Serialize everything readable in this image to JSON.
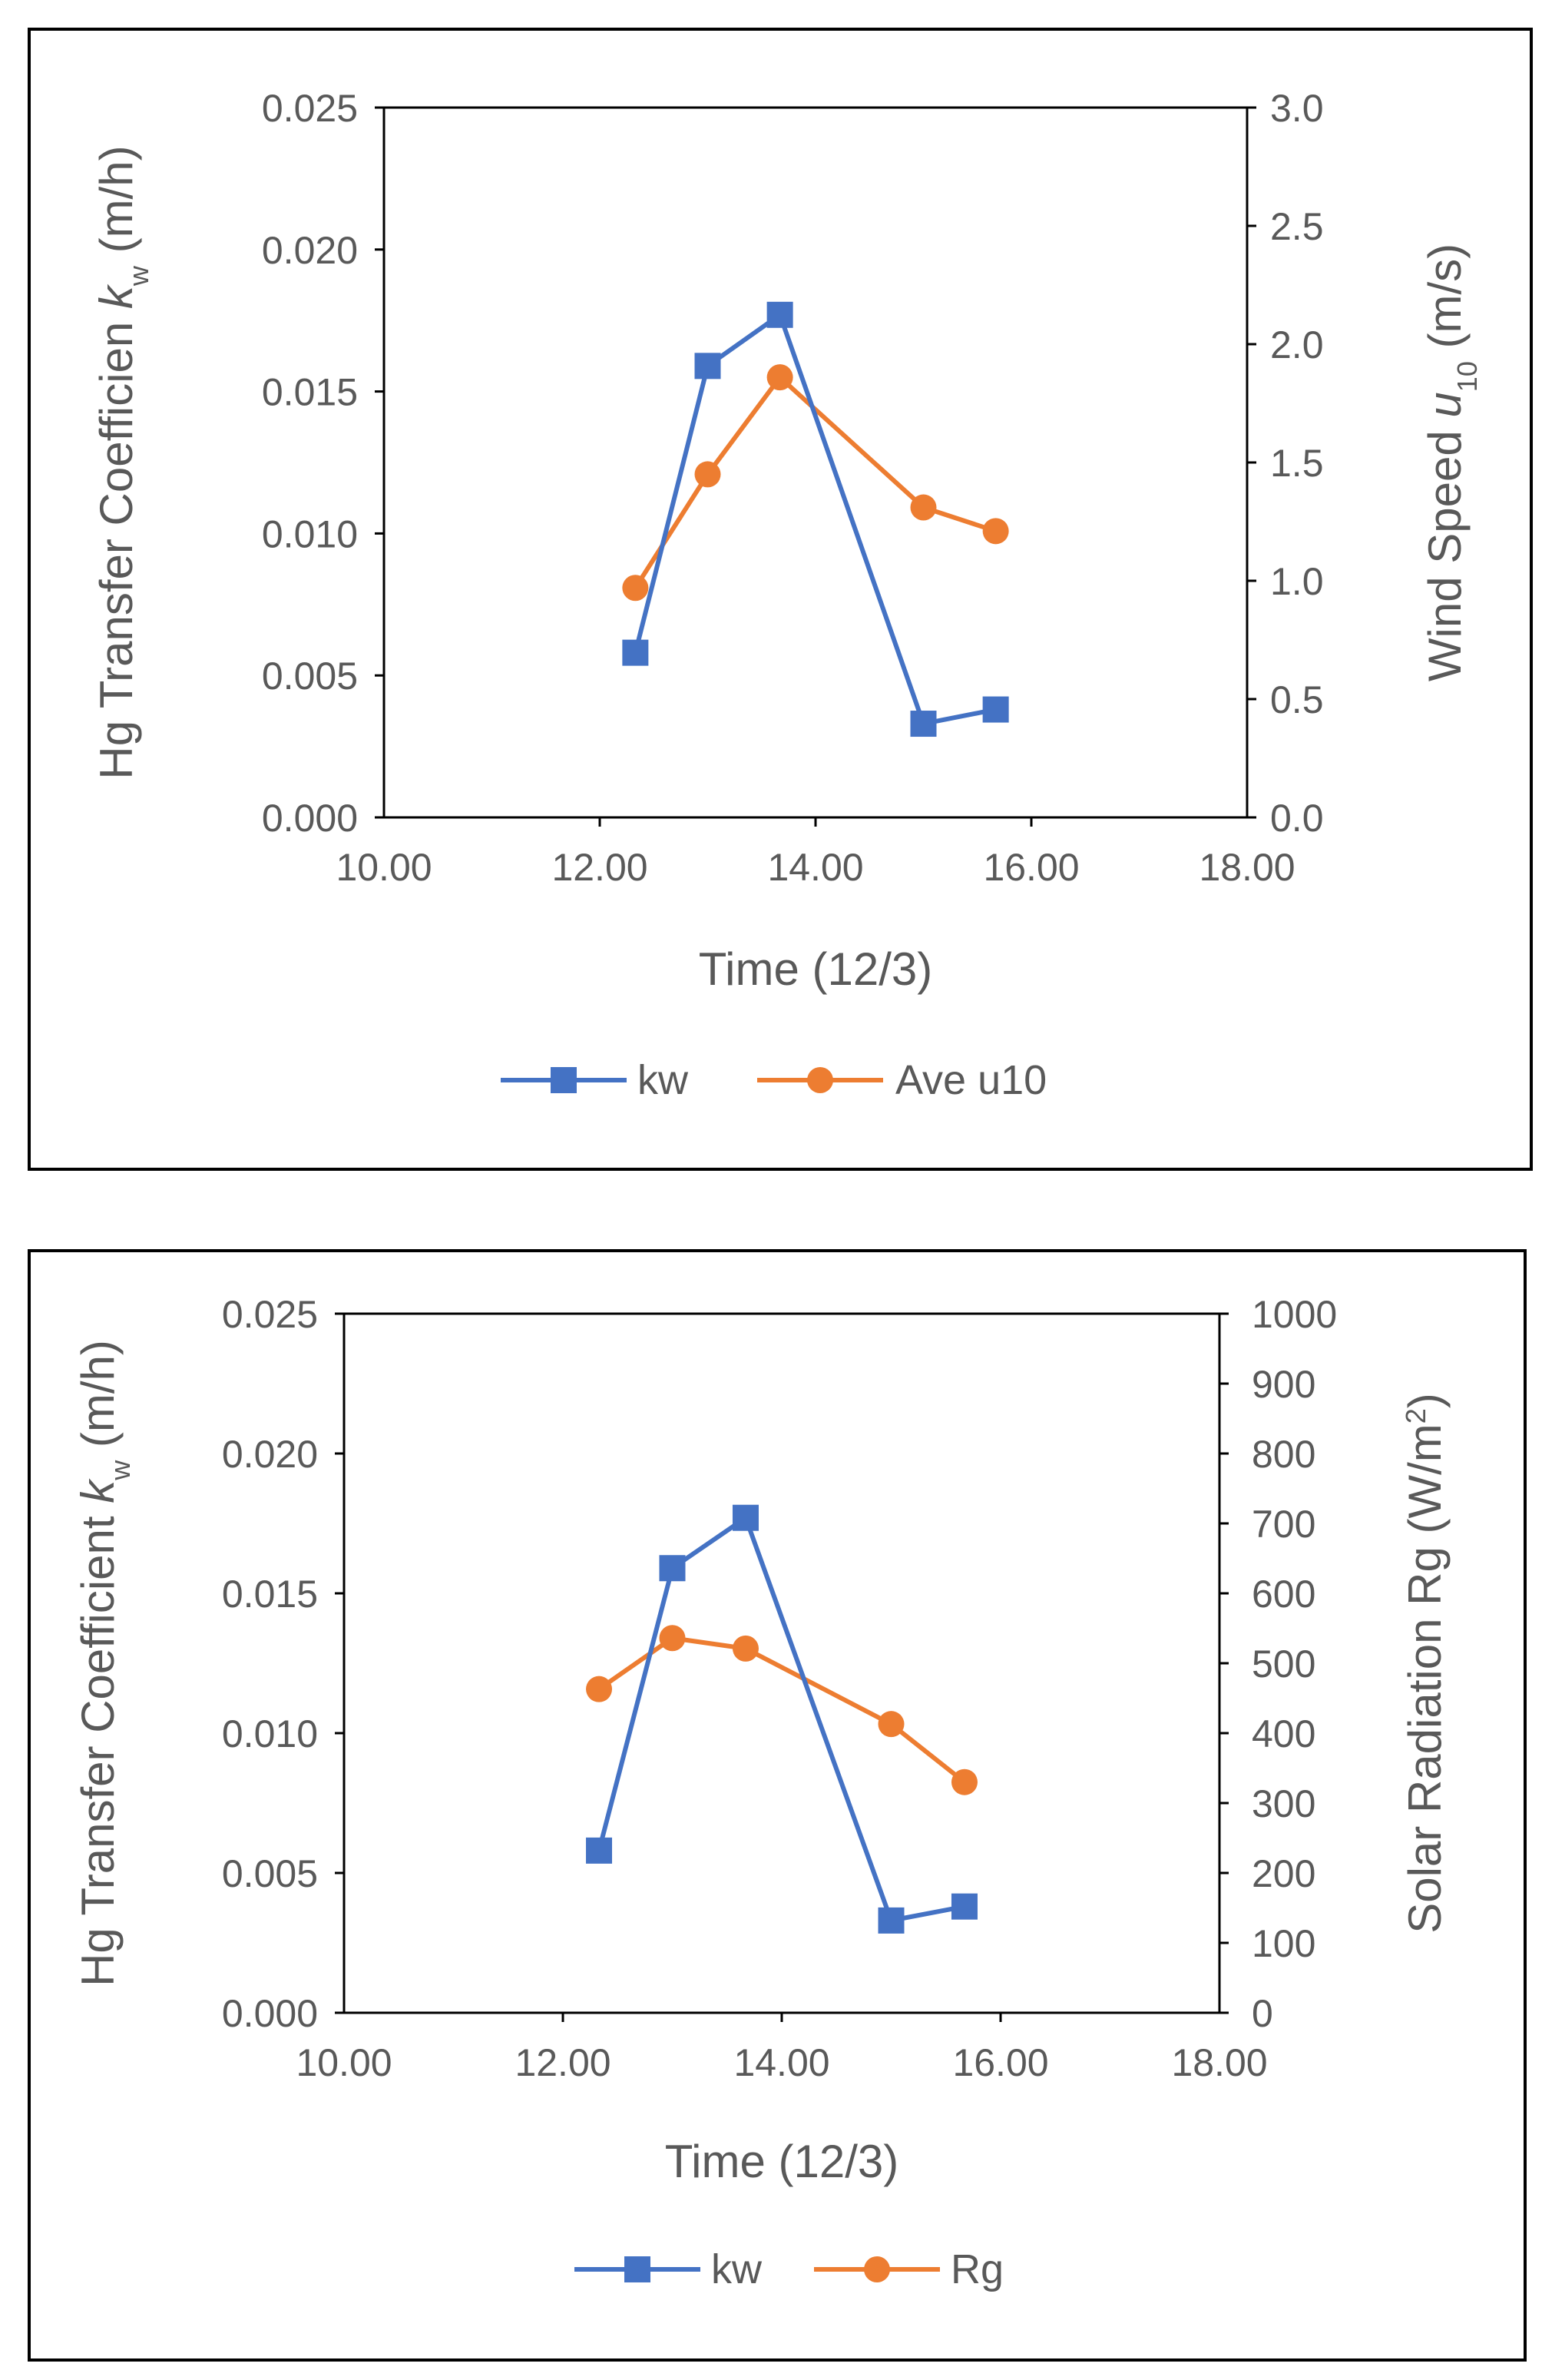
{
  "colors": {
    "kw": "#4472C4",
    "secondary": "#ED7D31",
    "axis_text": "#595959",
    "frame": "#000000"
  },
  "chart_data": [
    {
      "type": "line",
      "x": [
        12.33,
        13.0,
        13.67,
        15.0,
        15.67
      ],
      "series": [
        {
          "name": "kw",
          "axis": "left",
          "marker": "square",
          "values": [
            0.0058,
            0.0159,
            0.0177,
            0.0033,
            0.0038
          ]
        },
        {
          "name": "Ave u10",
          "axis": "right",
          "marker": "circle",
          "values": [
            0.97,
            1.45,
            1.86,
            1.31,
            1.21
          ]
        }
      ],
      "xlabel": "Time (12/3)",
      "xlim": [
        10.0,
        18.0
      ],
      "xticks": [
        "10.00",
        "12.00",
        "14.00",
        "16.00",
        "18.00"
      ],
      "ylim_left": [
        0.0,
        0.025
      ],
      "yticks_left": [
        "0.000",
        "0.005",
        "0.010",
        "0.015",
        "0.020",
        "0.025"
      ],
      "ylabel_left": {
        "main": "Hg Transfer Coefficien ",
        "var": "k",
        "sub": "w",
        "unit": " (m/h)"
      },
      "ylim_right": [
        0.0,
        3.0
      ],
      "yticks_right": [
        "0.0",
        "0.5",
        "1.0",
        "1.5",
        "2.0",
        "2.5",
        "3.0"
      ],
      "ylabel_right": {
        "main": "Wind Speed ",
        "var": "u",
        "sub": "10",
        "unit": " (m/s)"
      },
      "legend": [
        "kw",
        "Ave u10"
      ],
      "legend_position": "bottom",
      "grid": false
    },
    {
      "type": "line",
      "x": [
        12.33,
        13.0,
        13.67,
        15.0,
        15.67
      ],
      "series": [
        {
          "name": "kw",
          "axis": "left",
          "marker": "square",
          "values": [
            0.0058,
            0.0159,
            0.0177,
            0.0033,
            0.0038
          ]
        },
        {
          "name": "Rg",
          "axis": "right",
          "marker": "circle",
          "values": [
            463,
            536,
            521,
            413,
            330
          ]
        }
      ],
      "xlabel": "Time (12/3)",
      "xlim": [
        10.0,
        18.0
      ],
      "xticks": [
        "10.00",
        "12.00",
        "14.00",
        "16.00",
        "18.00"
      ],
      "ylim_left": [
        0.0,
        0.025
      ],
      "yticks_left": [
        "0.000",
        "0.005",
        "0.010",
        "0.015",
        "0.020",
        "0.025"
      ],
      "ylabel_left": {
        "main": "Hg Transfer Coefficient ",
        "var": "k",
        "sub": "w",
        "unit": " (m/h)"
      },
      "ylim_right": [
        0,
        1000
      ],
      "yticks_right": [
        "0",
        "100",
        "200",
        "300",
        "400",
        "500",
        "600",
        "700",
        "800",
        "900",
        "1000"
      ],
      "ylabel_right": {
        "main": "Solar Radiation Rg (W/m",
        "sup": "2",
        "unit": ")"
      },
      "legend": [
        "kw",
        "Rg"
      ],
      "legend_position": "bottom",
      "grid": false
    }
  ]
}
